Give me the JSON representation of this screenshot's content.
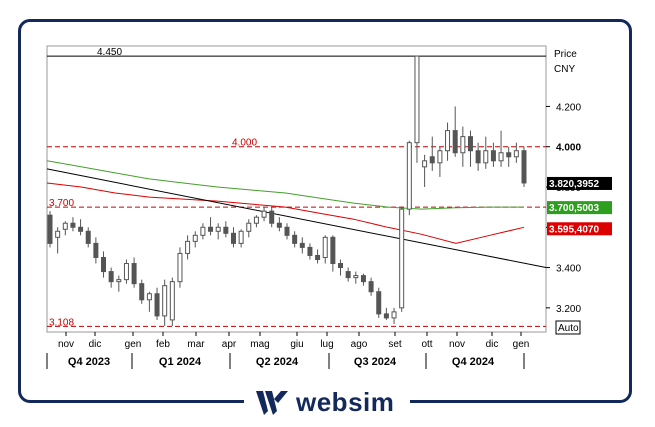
{
  "brand": {
    "name": "websim",
    "color": "#13295b"
  },
  "chart_data": {
    "type": "candlestick",
    "price_axis": {
      "title": "Price",
      "currency": "CNY",
      "ticks": [
        4.2,
        4.0,
        3.8,
        3.6,
        3.4,
        3.2
      ],
      "tick_labels": [
        "4.200",
        "4.000",
        "3.800",
        "3.600",
        "3.400",
        "3.200"
      ],
      "ylim": [
        3.08,
        4.5
      ]
    },
    "months": [
      "nov",
      "dic",
      "gen",
      "feb",
      "mar",
      "apr",
      "mag",
      "giu",
      "lug",
      "ago",
      "set",
      "ott",
      "nov",
      "dic",
      "gen"
    ],
    "quarters": [
      "Q4 2023",
      "Q1 2024",
      "Q2 2024",
      "Q3 2024",
      "Q4 2024"
    ],
    "levels": [
      {
        "label": "4.450",
        "value": 4.45,
        "color": "#000000",
        "style": "solid"
      },
      {
        "label": "4.000",
        "value": 4.0,
        "color": "#cc0000",
        "style": "dashed"
      },
      {
        "label": "3.700",
        "value": 3.7,
        "color": "#cc0000",
        "style": "dashed"
      },
      {
        "label": "3.108",
        "value": 3.108,
        "color": "#cc0000",
        "style": "dashed"
      }
    ],
    "price_tags": [
      {
        "label": "3.820,3952",
        "value": 3.82,
        "color": "#000000"
      },
      {
        "label": "3.700,5003",
        "value": 3.7,
        "color": "#2e9e1e"
      },
      {
        "label": "3.595,4070",
        "value": 3.595,
        "color": "#dd0000"
      }
    ],
    "auto_label": "Auto",
    "series": [
      {
        "kind": "moving-average",
        "color": "#44a02c",
        "values": [
          3.93,
          3.9,
          3.87,
          3.84,
          3.82,
          3.8,
          3.785,
          3.77,
          3.745,
          3.72,
          3.7,
          3.69,
          3.697,
          3.7,
          3.7
        ]
      },
      {
        "kind": "moving-average",
        "color": "#dd0000",
        "values": [
          3.82,
          3.8,
          3.77,
          3.75,
          3.74,
          3.73,
          3.715,
          3.7,
          3.67,
          3.64,
          3.6,
          3.565,
          3.52,
          3.56,
          3.6
        ]
      },
      {
        "kind": "trendline",
        "color": "#000000",
        "values": [
          3.89,
          3.4
        ]
      }
    ],
    "candles": [
      [
        3.66,
        3.68,
        3.5,
        3.52
      ],
      [
        3.55,
        3.6,
        3.47,
        3.58
      ],
      [
        3.59,
        3.63,
        3.56,
        3.62
      ],
      [
        3.62,
        3.65,
        3.58,
        3.6
      ],
      [
        3.6,
        3.64,
        3.56,
        3.58
      ],
      [
        3.58,
        3.6,
        3.5,
        3.52
      ],
      [
        3.52,
        3.55,
        3.42,
        3.45
      ],
      [
        3.45,
        3.48,
        3.35,
        3.38
      ],
      [
        3.38,
        3.4,
        3.3,
        3.33
      ],
      [
        3.33,
        3.36,
        3.28,
        3.34
      ],
      [
        3.34,
        3.44,
        3.32,
        3.42
      ],
      [
        3.42,
        3.45,
        3.3,
        3.32
      ],
      [
        3.32,
        3.34,
        3.22,
        3.24
      ],
      [
        3.24,
        3.28,
        3.18,
        3.27
      ],
      [
        3.27,
        3.3,
        3.14,
        3.16
      ],
      [
        3.16,
        3.34,
        3.11,
        3.31
      ],
      [
        3.14,
        3.35,
        3.11,
        3.33
      ],
      [
        3.33,
        3.5,
        3.3,
        3.47
      ],
      [
        3.47,
        3.56,
        3.44,
        3.53
      ],
      [
        3.53,
        3.58,
        3.5,
        3.56
      ],
      [
        3.56,
        3.62,
        3.54,
        3.6
      ],
      [
        3.6,
        3.65,
        3.56,
        3.58
      ],
      [
        3.58,
        3.62,
        3.54,
        3.6
      ],
      [
        3.6,
        3.63,
        3.55,
        3.57
      ],
      [
        3.57,
        3.6,
        3.5,
        3.52
      ],
      [
        3.52,
        3.59,
        3.5,
        3.58
      ],
      [
        3.58,
        3.64,
        3.55,
        3.62
      ],
      [
        3.62,
        3.66,
        3.6,
        3.65
      ],
      [
        3.65,
        3.7,
        3.63,
        3.68
      ],
      [
        3.68,
        3.7,
        3.6,
        3.62
      ],
      [
        3.62,
        3.65,
        3.58,
        3.6
      ],
      [
        3.6,
        3.62,
        3.54,
        3.56
      ],
      [
        3.56,
        3.58,
        3.5,
        3.52
      ],
      [
        3.52,
        3.55,
        3.47,
        3.5
      ],
      [
        3.5,
        3.52,
        3.44,
        3.46
      ],
      [
        3.46,
        3.49,
        3.42,
        3.44
      ],
      [
        3.45,
        3.56,
        3.42,
        3.55
      ],
      [
        3.55,
        3.56,
        3.38,
        3.42
      ],
      [
        3.42,
        3.44,
        3.36,
        3.4
      ],
      [
        3.38,
        3.4,
        3.33,
        3.35
      ],
      [
        3.35,
        3.38,
        3.32,
        3.36
      ],
      [
        3.36,
        3.37,
        3.31,
        3.33
      ],
      [
        3.33,
        3.35,
        3.26,
        3.28
      ],
      [
        3.28,
        3.3,
        3.15,
        3.17
      ],
      [
        3.17,
        3.2,
        3.14,
        3.15
      ],
      [
        3.15,
        3.2,
        3.12,
        3.18
      ],
      [
        3.2,
        3.7,
        3.18,
        3.69
      ],
      [
        3.69,
        4.03,
        3.66,
        4.02
      ],
      [
        4.02,
        4.45,
        3.92,
        4.45
      ],
      [
        3.9,
        3.96,
        3.8,
        3.93
      ],
      [
        3.95,
        4.05,
        3.88,
        3.92
      ],
      [
        3.92,
        4.0,
        3.85,
        3.98
      ],
      [
        3.98,
        4.12,
        3.93,
        4.08
      ],
      [
        4.08,
        4.2,
        3.95,
        3.97
      ],
      [
        3.97,
        4.1,
        3.9,
        4.05
      ],
      [
        4.05,
        4.08,
        3.9,
        3.98
      ],
      [
        3.98,
        4.02,
        3.88,
        3.92
      ],
      [
        3.92,
        4.05,
        3.89,
        3.98
      ],
      [
        3.98,
        4.02,
        3.9,
        3.93
      ],
      [
        3.93,
        4.08,
        3.9,
        3.97
      ],
      [
        3.97,
        4.0,
        3.9,
        3.95
      ],
      [
        3.95,
        4.02,
        3.92,
        3.98
      ],
      [
        3.98,
        4.0,
        3.8,
        3.82
      ]
    ]
  }
}
